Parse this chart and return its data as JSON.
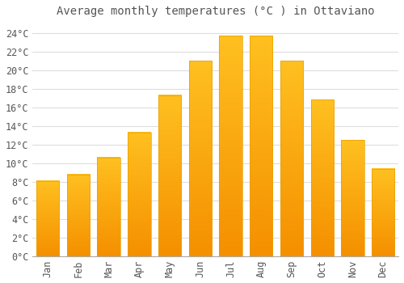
{
  "title": "Average monthly temperatures (°C ) in Ottaviano",
  "months": [
    "Jan",
    "Feb",
    "Mar",
    "Apr",
    "May",
    "Jun",
    "Jul",
    "Aug",
    "Sep",
    "Oct",
    "Nov",
    "Dec"
  ],
  "values": [
    8.1,
    8.8,
    10.6,
    13.3,
    17.3,
    21.0,
    23.7,
    23.7,
    21.0,
    16.8,
    12.5,
    9.4
  ],
  "bar_color_top": "#FFC020",
  "bar_color_bottom": "#F59000",
  "bar_edge_color": "#E8A000",
  "background_color": "#FFFFFF",
  "grid_color": "#DDDDDD",
  "text_color": "#555555",
  "ylim": [
    0,
    25
  ],
  "ytick_step": 2,
  "title_fontsize": 10,
  "tick_fontsize": 8.5,
  "font_family": "monospace"
}
